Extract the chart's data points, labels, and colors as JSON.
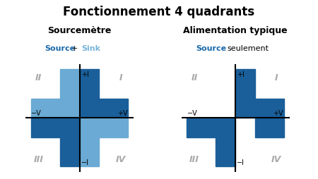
{
  "title": "Fonctionnement 4 quadrants",
  "title_fontsize": 12,
  "background_color": "#ffffff",
  "left_title": "Sourcemètre",
  "right_title": "Alimentation typique",
  "dark_blue": "#1a5f9a",
  "light_blue": "#6aaad4",
  "text_color": "#aaaaaa",
  "source_color": "#1a6aab",
  "sink_color": "#7ab5d8",
  "label_fontsize": 7,
  "quadrant_fontsize": 9,
  "subtitle_fontsize": 8
}
